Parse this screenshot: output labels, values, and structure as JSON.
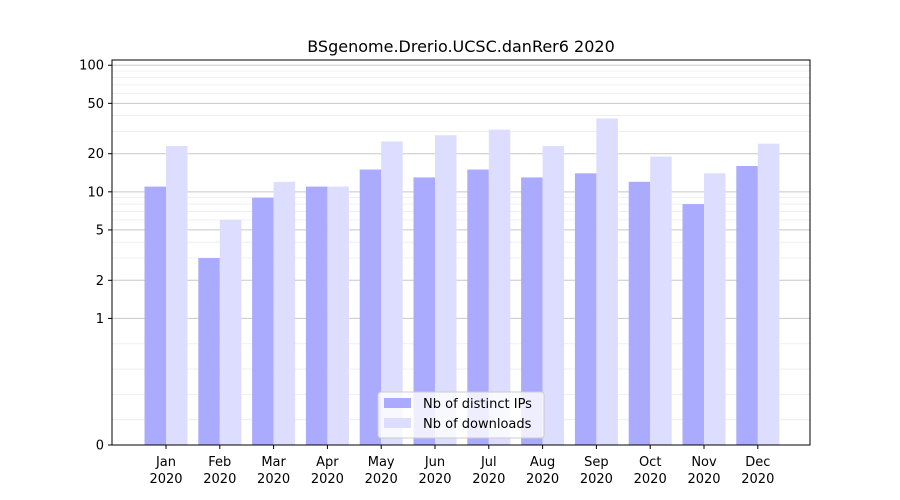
{
  "chart_data": {
    "type": "bar",
    "title": "BSgenome.Drerio.UCSC.danRer6 2020",
    "xlabel": "",
    "ylabel": "",
    "yscale": "symlog",
    "ylim": [
      0,
      110
    ],
    "yticks": [
      0,
      1,
      2,
      5,
      10,
      20,
      50,
      100
    ],
    "grid": true,
    "legend_position": "bottom-center",
    "categories": [
      [
        "Jan",
        "2020"
      ],
      [
        "Feb",
        "2020"
      ],
      [
        "Mar",
        "2020"
      ],
      [
        "Apr",
        "2020"
      ],
      [
        "May",
        "2020"
      ],
      [
        "Jun",
        "2020"
      ],
      [
        "Jul",
        "2020"
      ],
      [
        "Aug",
        "2020"
      ],
      [
        "Sep",
        "2020"
      ],
      [
        "Oct",
        "2020"
      ],
      [
        "Nov",
        "2020"
      ],
      [
        "Dec",
        "2020"
      ]
    ],
    "series": [
      {
        "name": "Nb of distinct IPs",
        "color": "#aaaaff",
        "values": [
          11,
          3,
          9,
          11,
          15,
          13,
          15,
          13,
          14,
          12,
          8,
          16
        ]
      },
      {
        "name": "Nb of downloads",
        "color": "#ddddff",
        "values": [
          23,
          6,
          12,
          11,
          25,
          28,
          31,
          23,
          38,
          19,
          14,
          24
        ]
      }
    ]
  }
}
